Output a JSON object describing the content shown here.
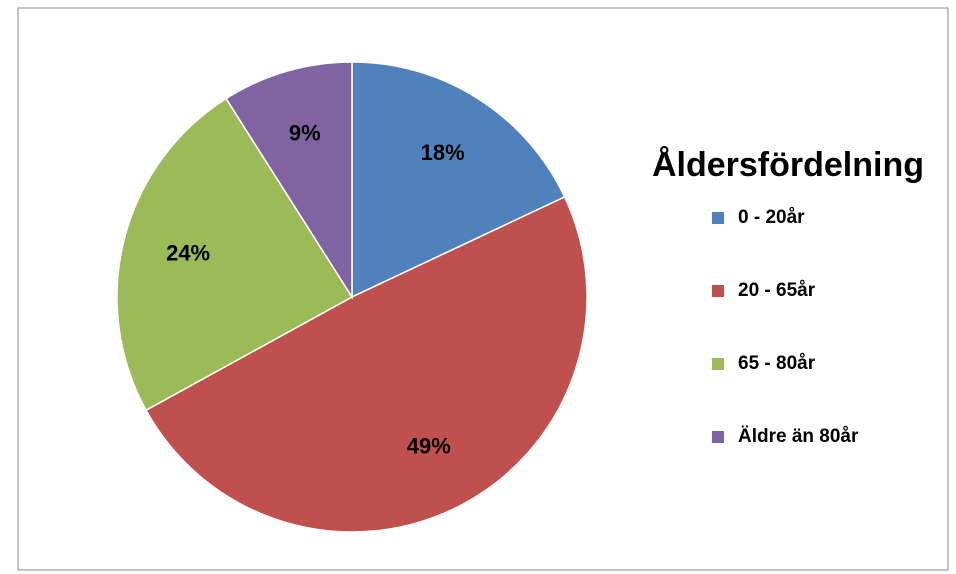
{
  "chart_data": {
    "type": "pie",
    "title": "Åldersfördelning",
    "categories": [
      "0 - 20år",
      "20 - 65år",
      "65 - 80år",
      "Äldre än 80år"
    ],
    "values": [
      18,
      49,
      24,
      9
    ],
    "value_labels": [
      "18%",
      "49%",
      "24%",
      "9%"
    ],
    "colors": [
      "#4f81bd",
      "#c0504d",
      "#9bbb59",
      "#8064a2"
    ],
    "legend": "right"
  }
}
